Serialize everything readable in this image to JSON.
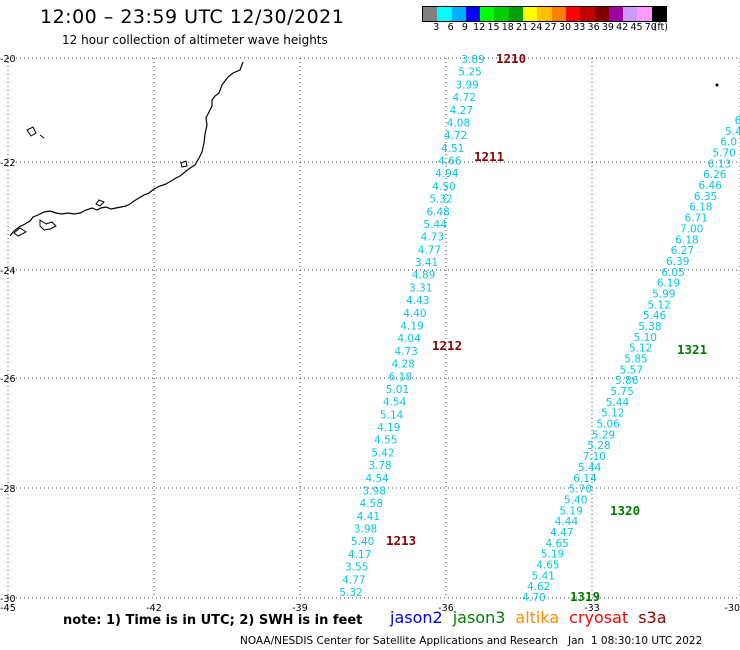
{
  "header": {
    "title": "12:00 – 23:59 UTC 12/30/2021",
    "subtitle": "12 hour collection of altimeter wave heights"
  },
  "colorbar": {
    "unit": "(ft)",
    "colors": [
      "#808080",
      "#00ffff",
      "#00b0ff",
      "#0000ff",
      "#00ff00",
      "#00cc00",
      "#00a000",
      "#ffff00",
      "#ffbf00",
      "#ff8000",
      "#ff0000",
      "#c00000",
      "#800000",
      "#a000a0",
      "#cc99ff",
      "#ff99ff",
      "#000000"
    ],
    "labels": [
      "3",
      "6",
      "9",
      "12",
      "15",
      "18",
      "21",
      "24",
      "27",
      "30",
      "33",
      "36",
      "39",
      "42",
      "45",
      "70"
    ]
  },
  "map": {
    "lon_labels": [
      "-45",
      "-42",
      "-39",
      "-36",
      "-33",
      "-30"
    ],
    "lat_labels": [
      "-20",
      "-22",
      "-24",
      "-26",
      "-28",
      "-30"
    ],
    "swh_color": "#00c8e8",
    "track_a": {
      "values": [
        "3.89",
        "5.25",
        "3.99",
        "4.72",
        "4.27",
        "4.08",
        "4.72",
        "4.51",
        "4.66",
        "4.94",
        "4.50",
        "5.32",
        "6.48",
        "5.44",
        "4.73",
        "4.77",
        "3.41",
        "4.89",
        "3.31",
        "4.43",
        "4.40",
        "4.19",
        "4.04",
        "4.73",
        "4.28",
        "6.18",
        "5.01",
        "4.54",
        "5.14",
        "4.19",
        "4.55",
        "5.42",
        "3.78",
        "4.54",
        "3.98",
        "4.58",
        "4.41",
        "3.98",
        "5.40",
        "4.17",
        "3.55",
        "4.77",
        "5.32"
      ],
      "times": [
        {
          "label": "1210",
          "color": "#8b0000"
        },
        {
          "label": "1211",
          "color": "#8b0000"
        },
        {
          "label": "1212",
          "color": "#8b0000"
        },
        {
          "label": "1213",
          "color": "#8b0000"
        }
      ]
    },
    "track_b": {
      "values": [
        "6",
        "5.4",
        "6.0",
        "5.70",
        "6.13",
        "6.26",
        "6.46",
        "6.35",
        "6.18",
        "6.71",
        "7.00",
        "6.18",
        "6.27",
        "6.39",
        "6.05",
        "6.19",
        "5.99",
        "5.12",
        "5.46",
        "5.38",
        "5.10",
        "5.12",
        "5.85",
        "5.57",
        "5.86",
        "5.75",
        "5.44",
        "5.12",
        "5.06",
        "5.29",
        "5.28",
        "7.10",
        "5.44",
        "6.14",
        "5.70",
        "5.40",
        "5.19",
        "4.44",
        "4.47",
        "4.65",
        "5.19",
        "4.65",
        "5.41",
        "4.62",
        "4.70"
      ],
      "times": [
        {
          "label": "1321",
          "color": "#007a00"
        },
        {
          "label": "1320",
          "color": "#007a00"
        },
        {
          "label": "1319",
          "color": "#007a00"
        }
      ]
    }
  },
  "footer": {
    "note": "note: 1) Time is in UTC; 2) SWH is in feet",
    "satellites": [
      {
        "name": "jason2",
        "color": "#0000ff"
      },
      {
        "name": "jason3",
        "color": "#008000"
      },
      {
        "name": "altika",
        "color": "#ff8c00"
      },
      {
        "name": "cryosat",
        "color": "#ff0000"
      },
      {
        "name": "s3a",
        "color": "#8b0000"
      }
    ],
    "credit": "NOAA/NESDIS Center for Satellite Applications and Research   Jan  1 08:30:10 UTC 2022"
  }
}
